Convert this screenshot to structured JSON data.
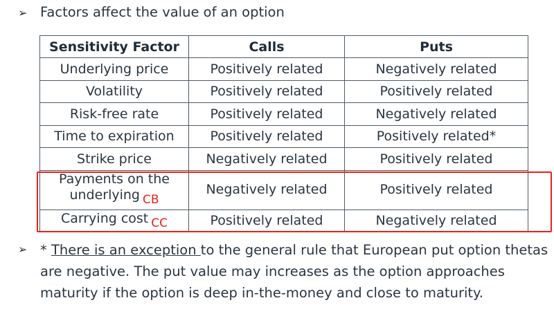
{
  "heading": {
    "bullet": "➢",
    "text": "Factors affect the value of an option"
  },
  "table": {
    "headers": [
      "Sensitivity Factor",
      "Calls",
      "Puts"
    ],
    "rows": [
      {
        "factor": "Underlying price",
        "calls": "Positively related",
        "puts": "Negatively related"
      },
      {
        "factor": "Volatility",
        "calls": "Positively related",
        "puts": "Positively related"
      },
      {
        "factor": "Risk-free rate",
        "calls": "Positively related",
        "puts": "Negatively related"
      },
      {
        "factor": "Time to expiration",
        "calls": "Positively related",
        "puts": "Positively related*"
      },
      {
        "factor": "Strike price",
        "calls": "Negatively related",
        "puts": "Positively related"
      },
      {
        "factor_line1": "Payments on the",
        "factor_line2": "underlying",
        "annotation": "CB",
        "calls": "Negatively related",
        "puts": "Positively related"
      },
      {
        "factor": "Carrying cost",
        "annotation": "CC",
        "calls": "Positively related",
        "puts": "Negatively related"
      }
    ]
  },
  "note": {
    "bullet": "➢",
    "prefix": "* ",
    "underlined": "There is an exception ",
    "rest": "to the general rule that European put option thetas are negative. The put value may increases as the option approaches maturity if the option is deep in-the-money and close to maturity."
  },
  "colors": {
    "highlight": "#e8201a",
    "text": "#2a3541",
    "border": "#4e5a66"
  }
}
